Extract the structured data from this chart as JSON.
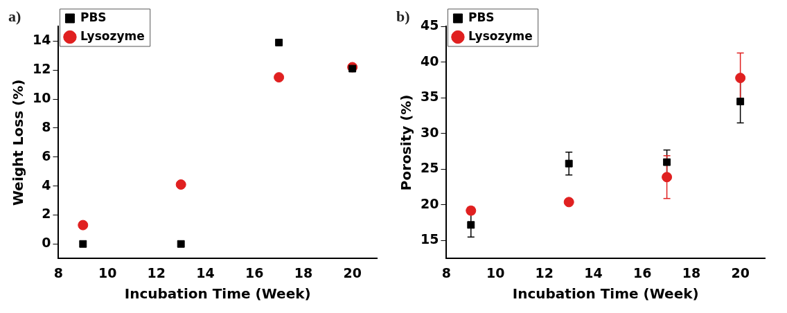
{
  "chart_data": [
    {
      "type": "scatter",
      "title": "a)",
      "xlabel": "Incubation Time (Week)",
      "ylabel": "Weight Loss (%)",
      "x": [
        9,
        13,
        17,
        20
      ],
      "xlim": [
        8,
        21
      ],
      "xticks": [
        8,
        10,
        12,
        14,
        16,
        18,
        20
      ],
      "ylim": [
        -1,
        15
      ],
      "yticks": [
        0,
        2,
        4,
        6,
        8,
        10,
        12,
        14
      ],
      "legend": "top left",
      "grid": false,
      "series": [
        {
          "name": "PBS",
          "color": "#000000",
          "marker": "square",
          "values": [
            0,
            0,
            13.9,
            12.1
          ]
        },
        {
          "name": "Lysozyme",
          "color": "#e02020",
          "marker": "circle",
          "values": [
            1.3,
            4.1,
            11.5,
            12.2
          ]
        }
      ]
    },
    {
      "type": "scatter",
      "title": "b)",
      "xlabel": "Incubation Time (Week)",
      "ylabel": "Porosity (%)",
      "x": [
        9,
        13,
        17,
        20
      ],
      "xlim": [
        8,
        21
      ],
      "xticks": [
        8,
        10,
        12,
        14,
        16,
        18,
        20
      ],
      "ylim": [
        12.5,
        45
      ],
      "yticks": [
        15,
        20,
        25,
        30,
        35,
        40,
        45
      ],
      "legend": "top left",
      "grid": false,
      "series": [
        {
          "name": "PBS",
          "color": "#000000",
          "marker": "square",
          "values": [
            17.2,
            25.8,
            26,
            34.5
          ],
          "errors": [
            1.7,
            1.6,
            1.7,
            3
          ]
        },
        {
          "name": "Lysozyme",
          "color": "#e02020",
          "marker": "circle",
          "values": [
            19.2,
            20.4,
            23.9,
            37.8
          ],
          "errors": [
            0.5,
            null,
            3,
            3.5
          ]
        }
      ]
    }
  ]
}
